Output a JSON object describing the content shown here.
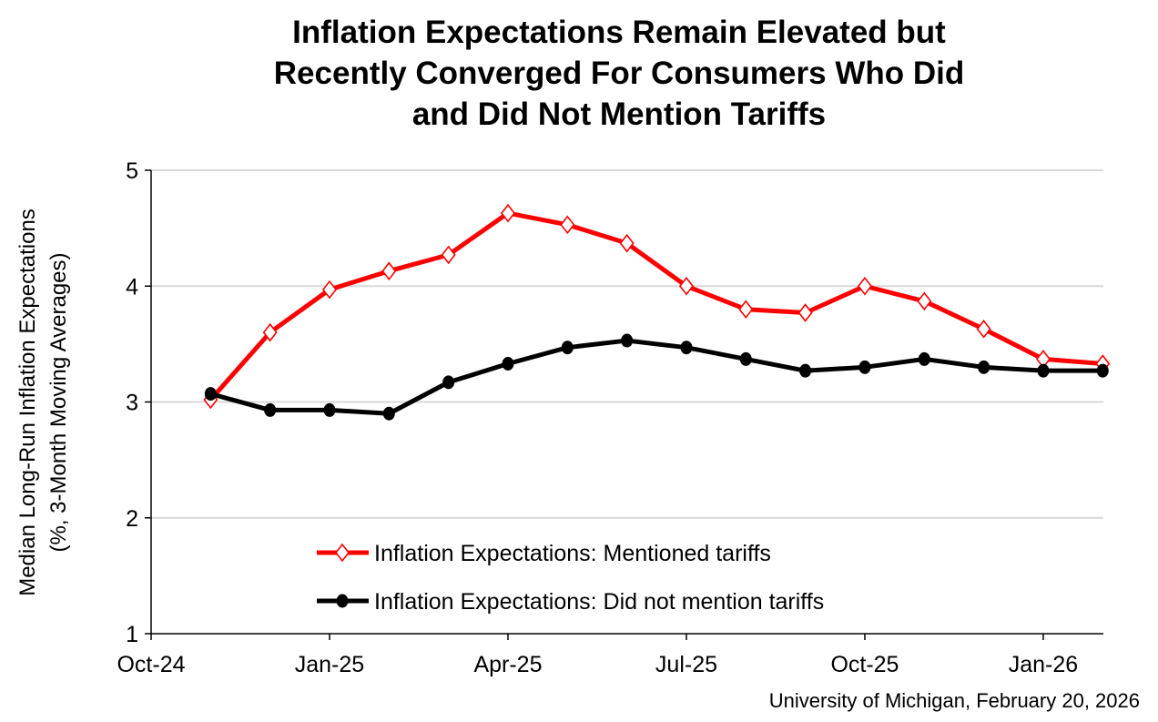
{
  "chart_data": {
    "type": "line",
    "title": [
      "Inflation Expectations Remain Elevated but",
      "Recently Converged For Consumers Who Did",
      "and Did Not Mention Tariffs"
    ],
    "ylabel": [
      "Median Long-Run Inflation Expectations",
      "(%, 3-Month Moving Averages)"
    ],
    "xlabel": "",
    "ylim": [
      1,
      5
    ],
    "yticks": [
      "1",
      "2",
      "3",
      "4",
      "5"
    ],
    "xticks": [
      "Oct-24",
      "Jan-25",
      "Apr-25",
      "Jul-25",
      "Oct-25",
      "Jan-26"
    ],
    "grid": true,
    "legend_position": "bottom-center",
    "x": [
      "Nov-24",
      "Dec-24",
      "Jan-25",
      "Feb-25",
      "Mar-25",
      "Apr-25",
      "May-25",
      "Jun-25",
      "Jul-25",
      "Aug-25",
      "Sep-25",
      "Oct-25",
      "Nov-25",
      "Dec-25",
      "Jan-26",
      "Feb-26"
    ],
    "series": [
      {
        "name": "Inflation Expectations: Mentioned tariffs",
        "color": "#ff0000",
        "marker": "diamond-open",
        "values": [
          3.02,
          3.6,
          3.97,
          4.13,
          4.27,
          4.63,
          4.53,
          4.37,
          4.0,
          3.8,
          3.77,
          4.0,
          3.87,
          3.63,
          3.37,
          3.33
        ]
      },
      {
        "name": "Inflation Expectations: Did not mention tariffs",
        "color": "#000000",
        "marker": "circle-filled",
        "values": [
          3.07,
          2.93,
          2.93,
          2.9,
          3.17,
          3.33,
          3.47,
          3.53,
          3.47,
          3.37,
          3.27,
          3.3,
          3.37,
          3.3,
          3.27,
          3.27
        ]
      }
    ],
    "source": "University of Michigan, February 20, 2026"
  }
}
